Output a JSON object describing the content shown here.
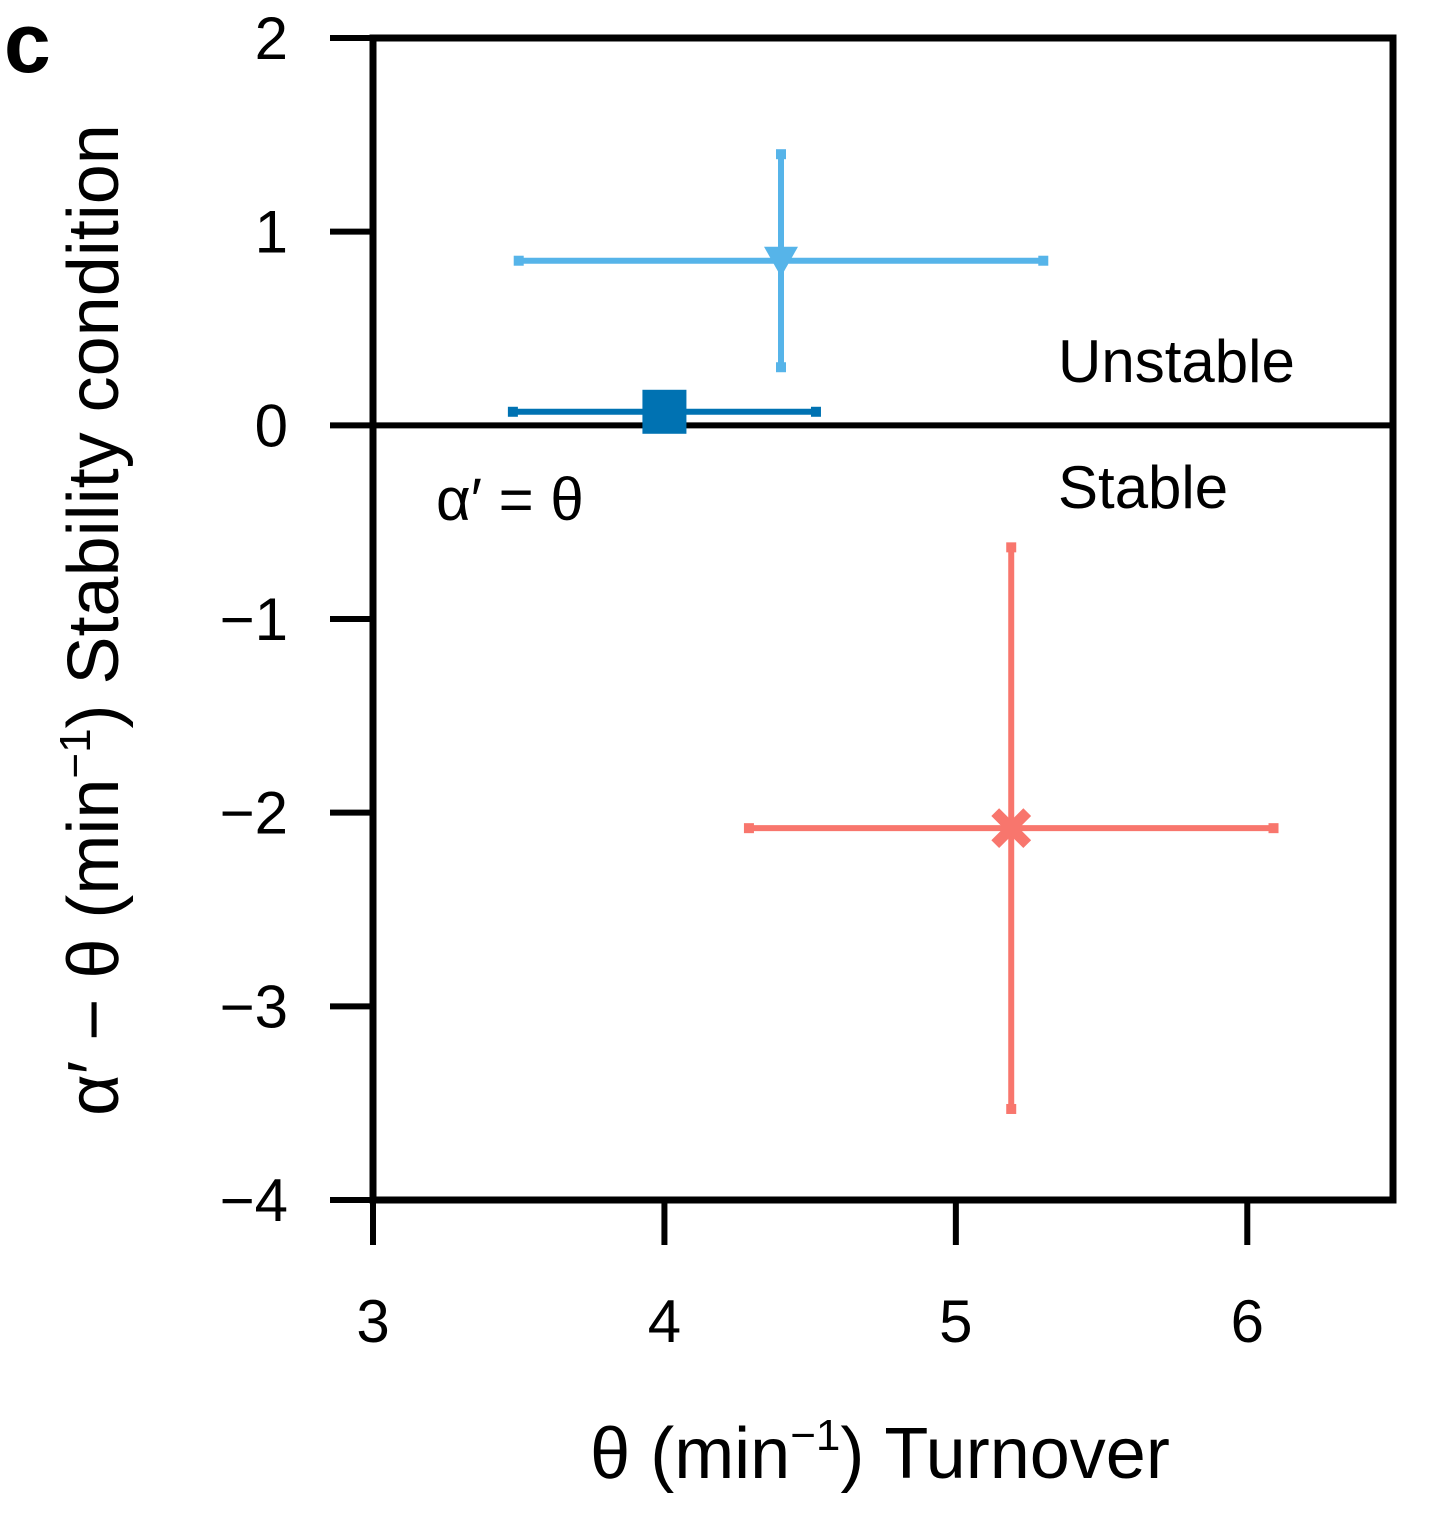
{
  "chart_data": {
    "type": "scatter",
    "panel_label": "c",
    "x_label": {
      "main": "θ (min",
      "sup": "−1",
      "rest": ") Turnover"
    },
    "y_label": {
      "main": "α′ − θ (min",
      "sup": "−1",
      "rest": ") Stability condition"
    },
    "annotations": [
      "Unstable",
      "Stable",
      "α′ = θ"
    ],
    "hline": 0,
    "xlim": [
      3,
      6.5
    ],
    "ylim": [
      -4,
      2
    ],
    "xticks": [
      3,
      4,
      5,
      6
    ],
    "yticks": [
      {
        "value": -4,
        "label": "−4"
      },
      {
        "value": -3,
        "label": "−3"
      },
      {
        "value": -2,
        "label": "−2"
      },
      {
        "value": -1,
        "label": "−1"
      },
      0,
      1,
      2
    ],
    "series": [
      {
        "color": "#56b4e9",
        "marker": "triangle-down",
        "x": [
          4.4
        ],
        "values": [
          0.85
        ],
        "xerr": [
          0.9
        ],
        "yerr": [
          0.55
        ]
      },
      {
        "color": "#0072b2",
        "marker": "square",
        "x": [
          4.0
        ],
        "values": [
          0.07
        ],
        "xerr": [
          0.52
        ],
        "yerr": [
          0.05
        ]
      },
      {
        "color": "#f8766d",
        "marker": "x",
        "x": [
          5.19
        ],
        "values": [
          -2.08
        ],
        "xerr": [
          0.9
        ],
        "yerr": [
          1.45
        ]
      }
    ]
  }
}
